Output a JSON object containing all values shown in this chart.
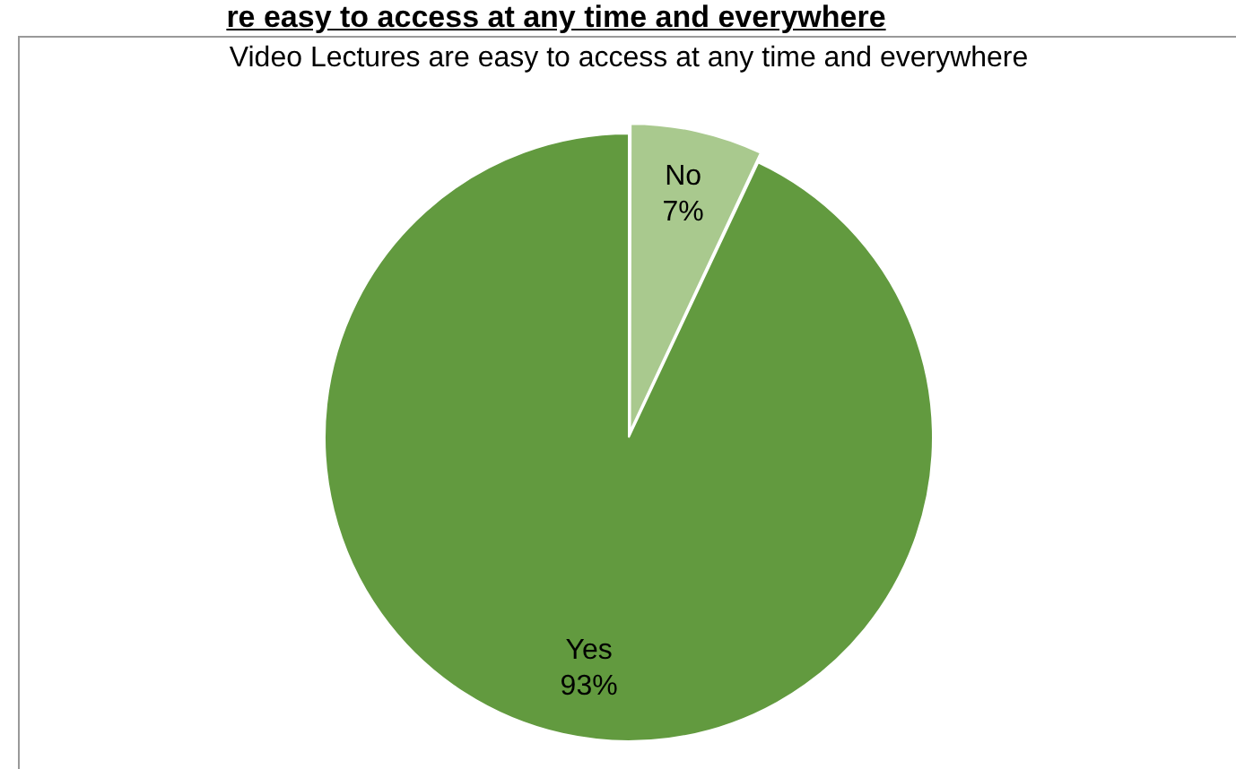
{
  "chart_data": {
    "type": "pie",
    "title": "Video Lectures are easy to access at any time and everywhere",
    "annotations": [
      "re easy to access at any time and everywhere"
    ],
    "categories": [
      "No",
      "Yes"
    ],
    "values": [
      7,
      93
    ],
    "colors": [
      "#a9c98e",
      "#629a3f"
    ],
    "value_labels": [
      "7%",
      "93%"
    ],
    "legend": false
  }
}
